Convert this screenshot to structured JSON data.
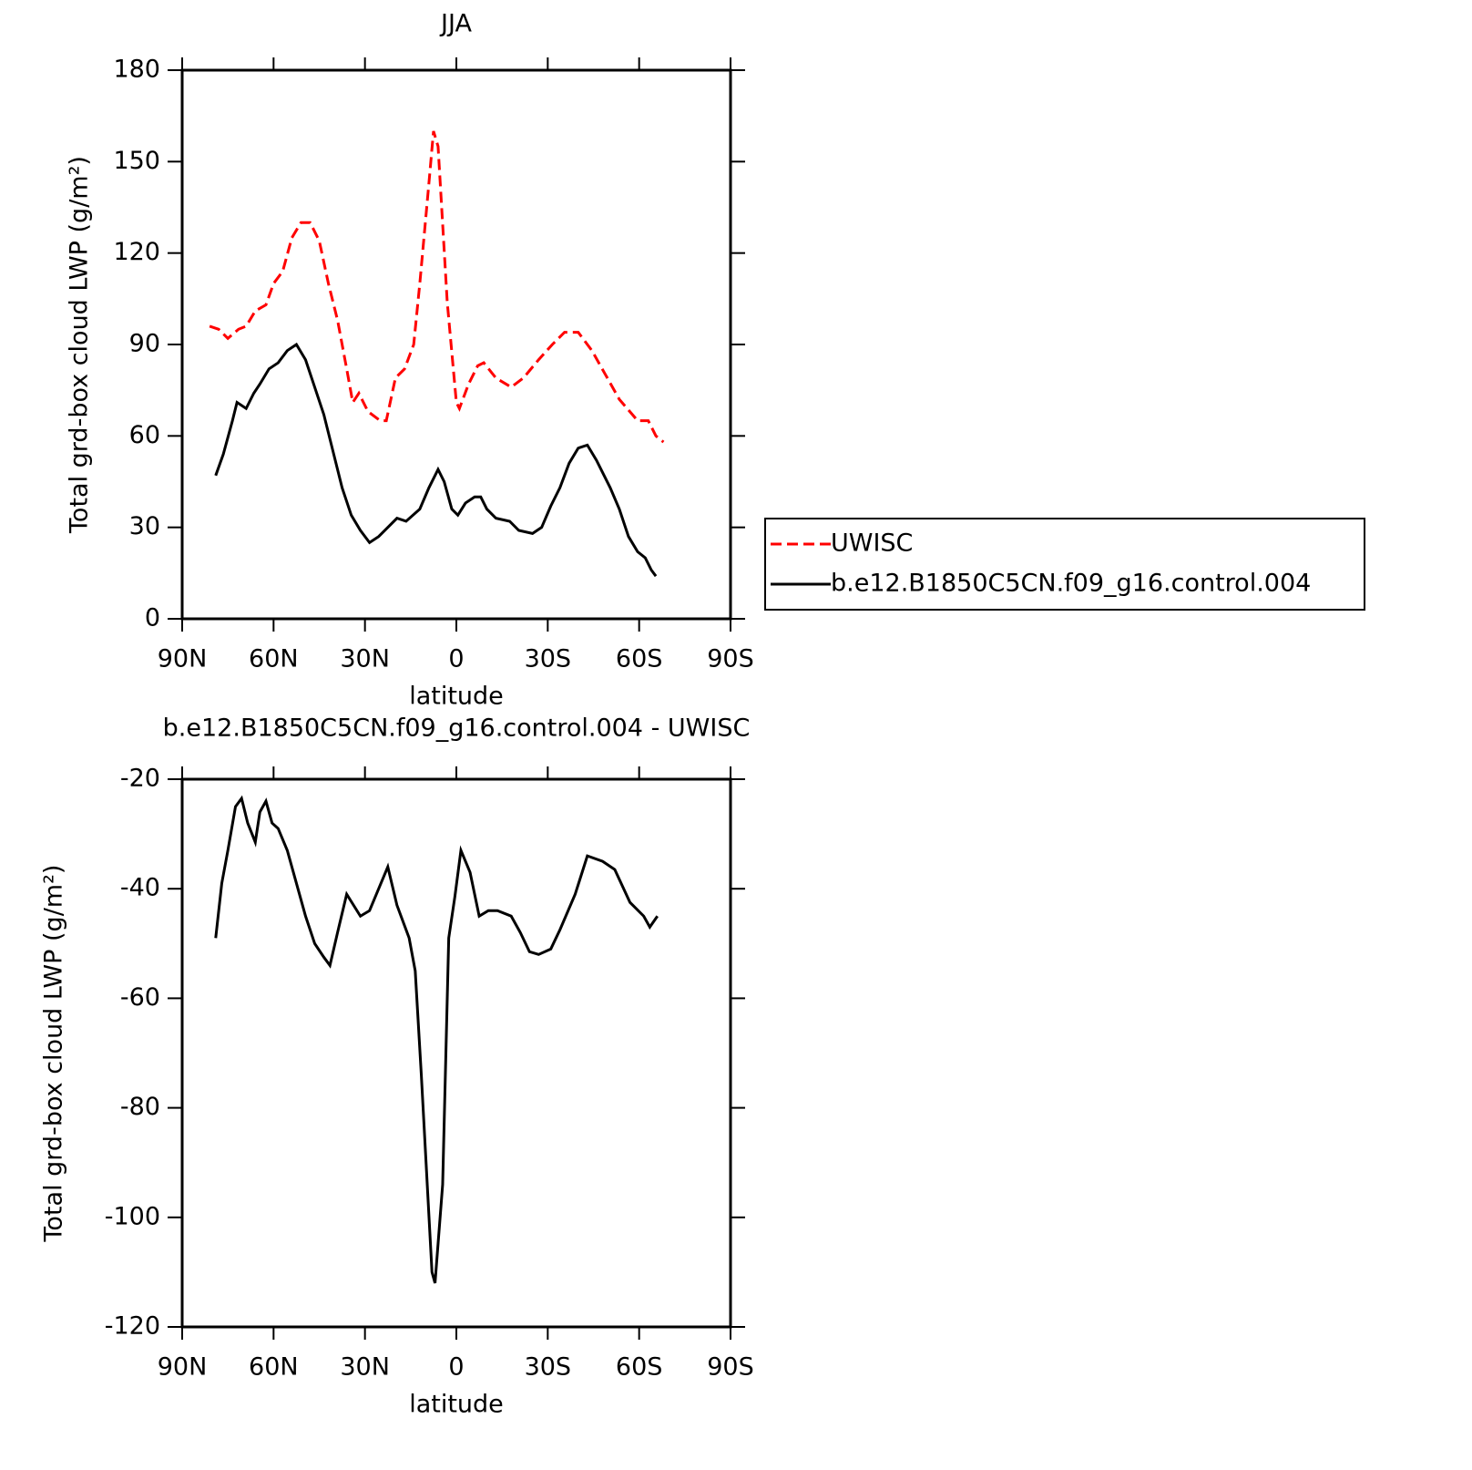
{
  "chart_data": [
    {
      "type": "line",
      "title": "JJA",
      "xlabel": "latitude",
      "ylabel": "Total grd-box cloud LWP (g/m²)",
      "xlim": [
        90,
        -90
      ],
      "xticks": [
        {
          "value": 90,
          "label": "90N"
        },
        {
          "value": 60,
          "label": "60N"
        },
        {
          "value": 30,
          "label": "30N"
        },
        0,
        {
          "value": -30,
          "label": "30S"
        },
        {
          "value": -60,
          "label": "60S"
        },
        {
          "value": -90,
          "label": "90S"
        }
      ],
      "ylim": [
        0,
        180
      ],
      "yticks": [
        0,
        30,
        60,
        90,
        120,
        150,
        180
      ],
      "legend": "right",
      "series": [
        {
          "name": "UWISC",
          "color": "#ff0000",
          "linestyle": "dashed",
          "x": [
            81,
            78,
            75,
            71.5,
            69,
            66,
            62.5,
            60,
            57,
            54,
            51,
            48,
            45,
            42,
            39,
            36,
            34,
            32,
            29,
            25,
            23,
            20,
            17,
            14,
            12,
            9,
            7.5,
            6,
            3,
            0,
            -1,
            -4,
            -7,
            -9,
            -13,
            -18,
            -22,
            -27,
            -31.5,
            -35.5,
            -40,
            -44.5,
            -49,
            -53.5,
            -59.5,
            -63,
            -65.5,
            -68
          ],
          "values": [
            96,
            95,
            92,
            95,
            96,
            101,
            103,
            110,
            114,
            125,
            130,
            130,
            124,
            110,
            98,
            82,
            71,
            74,
            68,
            65,
            65,
            79,
            82,
            90,
            110,
            143,
            160,
            155,
            104,
            71,
            69,
            77,
            83,
            84,
            79,
            76,
            79,
            85,
            90,
            94,
            94,
            88,
            80,
            72,
            65,
            65,
            60,
            58
          ]
        },
        {
          "name": "b.e12.B1850C5CN.f09_g16.control.004",
          "color": "#000000",
          "linestyle": "solid",
          "x": [
            79,
            76.5,
            73.5,
            72,
            69,
            66.5,
            64.5,
            61.5,
            58.5,
            55.5,
            52.5,
            49.5,
            46.5,
            43.5,
            40.5,
            37.5,
            34.5,
            31.5,
            28.5,
            25.5,
            22.5,
            19.5,
            16.5,
            12,
            9,
            6,
            4,
            1.5,
            -0.5,
            -3,
            -6,
            -8,
            -10,
            -13,
            -17.5,
            -20.5,
            -25,
            -28,
            -31,
            -34,
            -37,
            -40,
            -43,
            -46,
            -50.5,
            -53.5,
            -56.5,
            -59.5,
            -62,
            -64,
            -65.5
          ],
          "values": [
            47,
            54,
            65,
            71,
            69,
            74,
            77,
            82,
            84,
            88,
            90,
            85,
            76,
            67,
            55,
            43,
            34,
            29,
            25,
            27,
            30,
            33,
            32,
            36,
            43,
            49,
            45,
            36,
            34,
            38,
            40,
            40,
            36,
            33,
            32,
            29,
            28,
            30,
            37,
            43,
            51,
            56,
            57,
            52,
            43,
            36,
            27,
            22,
            20,
            16,
            14
          ]
        }
      ]
    },
    {
      "type": "line",
      "title": "b.e12.B1850C5CN.f09_g16.control.004 - UWISC",
      "xlabel": "latitude",
      "ylabel": "Total grd-box cloud LWP (g/m²)",
      "xlim": [
        90,
        -90
      ],
      "xticks": [
        {
          "value": 90,
          "label": "90N"
        },
        {
          "value": 60,
          "label": "60N"
        },
        {
          "value": 30,
          "label": "30N"
        },
        0,
        {
          "value": -30,
          "label": "30S"
        },
        {
          "value": -60,
          "label": "60S"
        },
        {
          "value": -90,
          "label": "90S"
        }
      ],
      "ylim": [
        -120,
        -20
      ],
      "yticks": [
        -120,
        -100,
        -80,
        -60,
        -40,
        -20
      ],
      "series": [
        {
          "color": "#000000",
          "linestyle": "solid",
          "x": [
            79,
            77,
            75,
            72.5,
            70.5,
            68.5,
            66,
            64.5,
            62.5,
            60.5,
            58.5,
            55.5,
            52.5,
            49.5,
            46.5,
            43.5,
            41.5,
            39,
            36,
            31.5,
            28.5,
            25.5,
            22.5,
            19.5,
            15.5,
            13.5,
            11.5,
            8,
            7,
            4.5,
            2.5,
            0.5,
            -1.5,
            -4.5,
            -7.5,
            -10.5,
            -13.5,
            -18,
            -21,
            -24,
            -27,
            -31,
            -34,
            -39,
            -43,
            -48,
            -52,
            -57,
            -61.5,
            -63.5,
            -66
          ],
          "values": [
            -49,
            -39,
            -33,
            -25,
            -23.5,
            -28,
            -31.5,
            -26,
            -24,
            -28,
            -29,
            -33,
            -39,
            -45,
            -50,
            -52.5,
            -54,
            -48,
            -41,
            -45,
            -44,
            -40,
            -36,
            -43,
            -49,
            -55,
            -74,
            -110,
            -112,
            -94,
            -49,
            -41.5,
            -33,
            -37,
            -45,
            -44,
            -44,
            -45,
            -48,
            -51.5,
            -52,
            -51,
            -47.5,
            -41,
            -34,
            -35,
            -36.5,
            -42.5,
            -45,
            -47,
            -45
          ]
        }
      ]
    }
  ]
}
